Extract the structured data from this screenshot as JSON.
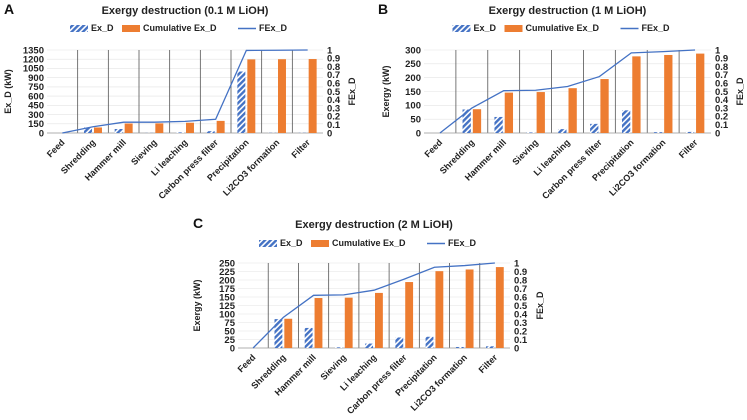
{
  "colors": {
    "ex_d": "#4472C4",
    "cumulative": "#ED7D31",
    "fex_line": "#4472C4",
    "grid": "#555555"
  },
  "chart_data": [
    {
      "type": "bar",
      "panel": "A",
      "title": "Exergy destruction (0.1 M LiOH)",
      "ylabel": "Ex_D (kW)",
      "y2label": "FEx_D",
      "ylim": [
        0,
        1350
      ],
      "ytick_step": 150,
      "y2lim": [
        0,
        1
      ],
      "y2tick_step": 0.1,
      "legend": "top",
      "categories": [
        "Feed",
        "Shredding",
        "Hammer mill",
        "Sieving",
        "Li leaching",
        "Carbon press filter",
        "Precipitation",
        "Li2CO3 formation",
        "Filter"
      ],
      "series": [
        {
          "name": "Ex_D",
          "kind": "bar-hatched",
          "values": [
            0,
            90,
            65,
            2,
            10,
            30,
            1000,
            3,
            3
          ]
        },
        {
          "name": "Cumulative Ex_D",
          "kind": "bar",
          "values": [
            0,
            90,
            155,
            157,
            167,
            197,
            1197,
            1200,
            1203
          ]
        },
        {
          "name": "FEx_D",
          "kind": "line",
          "axis": "right",
          "values": [
            0,
            0.075,
            0.13,
            0.13,
            0.14,
            0.165,
            0.995,
            0.997,
            1
          ]
        }
      ]
    },
    {
      "type": "bar",
      "panel": "B",
      "title": "Exergy destruction (1 M LiOH)",
      "ylabel": "Exergy (kW)",
      "y2label": "FEx_D",
      "ylim": [
        0,
        300
      ],
      "ytick_step": 50,
      "y2lim": [
        0,
        1
      ],
      "y2tick_step": 0.1,
      "legend": "top",
      "categories": [
        "Feed",
        "Shredding",
        "Hammer mill",
        "Sieving",
        "Li leaching",
        "Carbon press filter",
        "Precipitation",
        "Li2CO3 formation",
        "Filter"
      ],
      "series": [
        {
          "name": "Ex_D",
          "kind": "bar-hatched",
          "values": [
            0,
            85,
            58,
            2,
            14,
            33,
            82,
            3,
            4
          ]
        },
        {
          "name": "Cumulative Ex_D",
          "kind": "bar",
          "values": [
            0,
            86,
            146,
            148,
            162,
            195,
            277,
            282,
            287
          ]
        },
        {
          "name": "FEx_D",
          "kind": "line",
          "axis": "right",
          "values": [
            0,
            0.3,
            0.51,
            0.515,
            0.56,
            0.68,
            0.965,
            0.98,
            1
          ]
        }
      ]
    },
    {
      "type": "bar",
      "panel": "C",
      "title": "Exergy destruction (2 M LiOH)",
      "ylabel": "Exergy (kW)",
      "y2label": "FEx_D",
      "ylim": [
        0,
        250
      ],
      "ytick_step": 25,
      "y2lim": [
        0,
        1
      ],
      "y2tick_step": 0.1,
      "legend": "top",
      "categories": [
        "Feed",
        "Shredding",
        "Hammer mill",
        "Sieving",
        "Li leaching",
        "Carbon press filter",
        "Precipitation",
        "Li2CO3 formation",
        "Filter"
      ],
      "series": [
        {
          "name": "Ex_D",
          "kind": "bar-hatched",
          "values": [
            0,
            85,
            59,
            2,
            13,
            31,
            33,
            3,
            5
          ]
        },
        {
          "name": "Cumulative Ex_D",
          "kind": "bar",
          "values": [
            0,
            86,
            147,
            148,
            162,
            194,
            226,
            231,
            238
          ]
        },
        {
          "name": "FEx_D",
          "kind": "line",
          "axis": "right",
          "values": [
            0,
            0.36,
            0.62,
            0.625,
            0.68,
            0.81,
            0.95,
            0.97,
            1
          ]
        }
      ]
    }
  ]
}
